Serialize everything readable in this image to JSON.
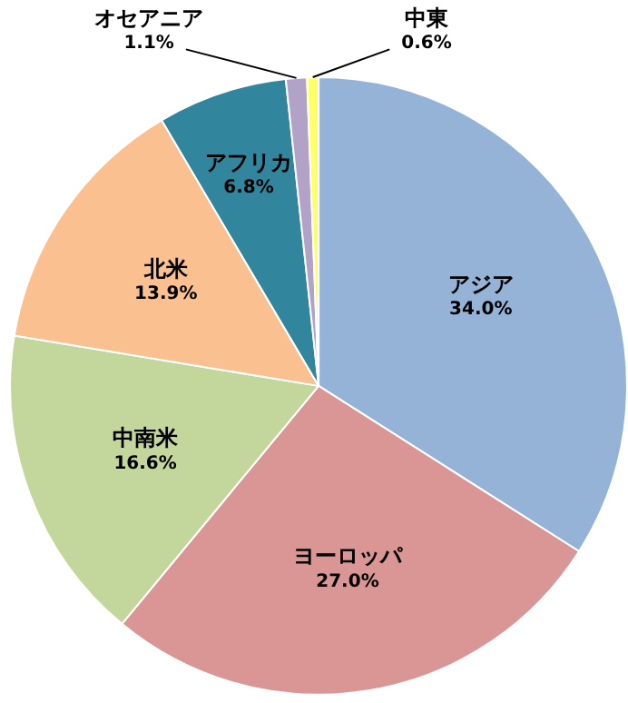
{
  "chart_data": {
    "type": "pie",
    "categories": [
      "アジア",
      "ヨーロッパ",
      "中南米",
      "北米",
      "アフリカ",
      "オセアニア",
      "中東"
    ],
    "values": [
      34.0,
      27.0,
      16.6,
      13.9,
      6.8,
      1.1,
      0.6
    ],
    "colors": [
      "#95b3d7",
      "#d99694",
      "#c3d69b",
      "#fac090",
      "#31859c",
      "#b3a2c7",
      "#ffff66"
    ],
    "value_labels": [
      "34.0%",
      "27.0%",
      "16.6%",
      "13.9%",
      "6.8%",
      "1.1%",
      "0.6%"
    ]
  }
}
